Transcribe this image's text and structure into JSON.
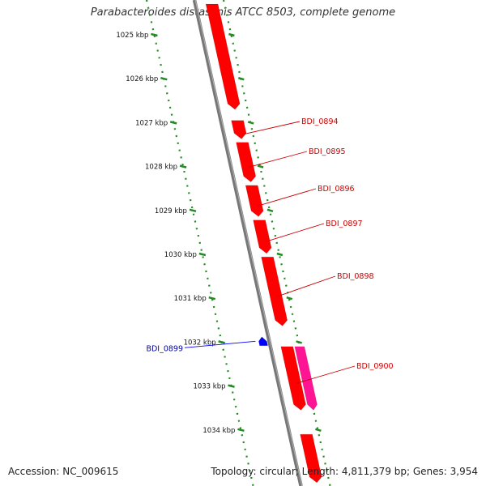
{
  "title": "Parabacteroides distasonis ATCC 8503, complete genome",
  "accession_label": "Accession: NC_009615",
  "summary_label": "Topology: circular; Length: 4,811,379 bp; Genes: 3,954",
  "colors": {
    "backbone": "#777777",
    "ruler": "#228B22",
    "gene_forward": "#ff0000",
    "gene_reverse": "#0000ff",
    "gene_highlight": "#ff1493",
    "label_forward": "#cc0000",
    "label_reverse": "#0000aa"
  },
  "ruler_ticks": [
    {
      "kbp": 1025,
      "label": "1025 kbp"
    },
    {
      "kbp": 1026,
      "label": "1026 kbp"
    },
    {
      "kbp": 1027,
      "label": "1027 kbp"
    },
    {
      "kbp": 1028,
      "label": "1028 kbp"
    },
    {
      "kbp": 1029,
      "label": "1029 kbp"
    },
    {
      "kbp": 1030,
      "label": "1030 kbp"
    },
    {
      "kbp": 1031,
      "label": "1031 kbp"
    },
    {
      "kbp": 1032,
      "label": "1032 kbp"
    },
    {
      "kbp": 1033,
      "label": "1033 kbp"
    },
    {
      "kbp": 1034,
      "label": "1034 kbp"
    }
  ],
  "genes": [
    {
      "id": "g_prev",
      "label": "",
      "start_kbp": 1024.3,
      "end_kbp": 1026.7,
      "strand": "+",
      "color": "#ff0000"
    },
    {
      "id": "g_0894",
      "label": "BDI_0894",
      "start_kbp": 1026.95,
      "end_kbp": 1027.37,
      "strand": "+",
      "color": "#ff0000"
    },
    {
      "id": "g_0895",
      "label": "BDI_0895",
      "start_kbp": 1027.45,
      "end_kbp": 1028.35,
      "strand": "+",
      "color": "#ff0000"
    },
    {
      "id": "g_0896",
      "label": "BDI_0896",
      "start_kbp": 1028.43,
      "end_kbp": 1029.14,
      "strand": "+",
      "color": "#ff0000"
    },
    {
      "id": "g_0897",
      "label": "BDI_0897",
      "start_kbp": 1029.22,
      "end_kbp": 1029.98,
      "strand": "+",
      "color": "#ff0000"
    },
    {
      "id": "g_0898",
      "label": "BDI_0898",
      "start_kbp": 1030.06,
      "end_kbp": 1031.63,
      "strand": "+",
      "color": "#ff0000"
    },
    {
      "id": "g_0899",
      "label": "BDI_0899",
      "start_kbp": 1031.88,
      "end_kbp": 1032.08,
      "strand": "-",
      "color": "#0000ff"
    },
    {
      "id": "g_0900a",
      "label": "",
      "start_kbp": 1032.1,
      "end_kbp": 1033.55,
      "strand": "+",
      "color": "#ff0000"
    },
    {
      "id": "g_0900b",
      "label": "BDI_0900",
      "start_kbp": 1032.1,
      "end_kbp": 1033.55,
      "strand": "+",
      "color": "#ff1493"
    },
    {
      "id": "g_next",
      "label": "",
      "start_kbp": 1034.1,
      "end_kbp": 1035.2,
      "strand": "+",
      "color": "#ff0000"
    }
  ]
}
